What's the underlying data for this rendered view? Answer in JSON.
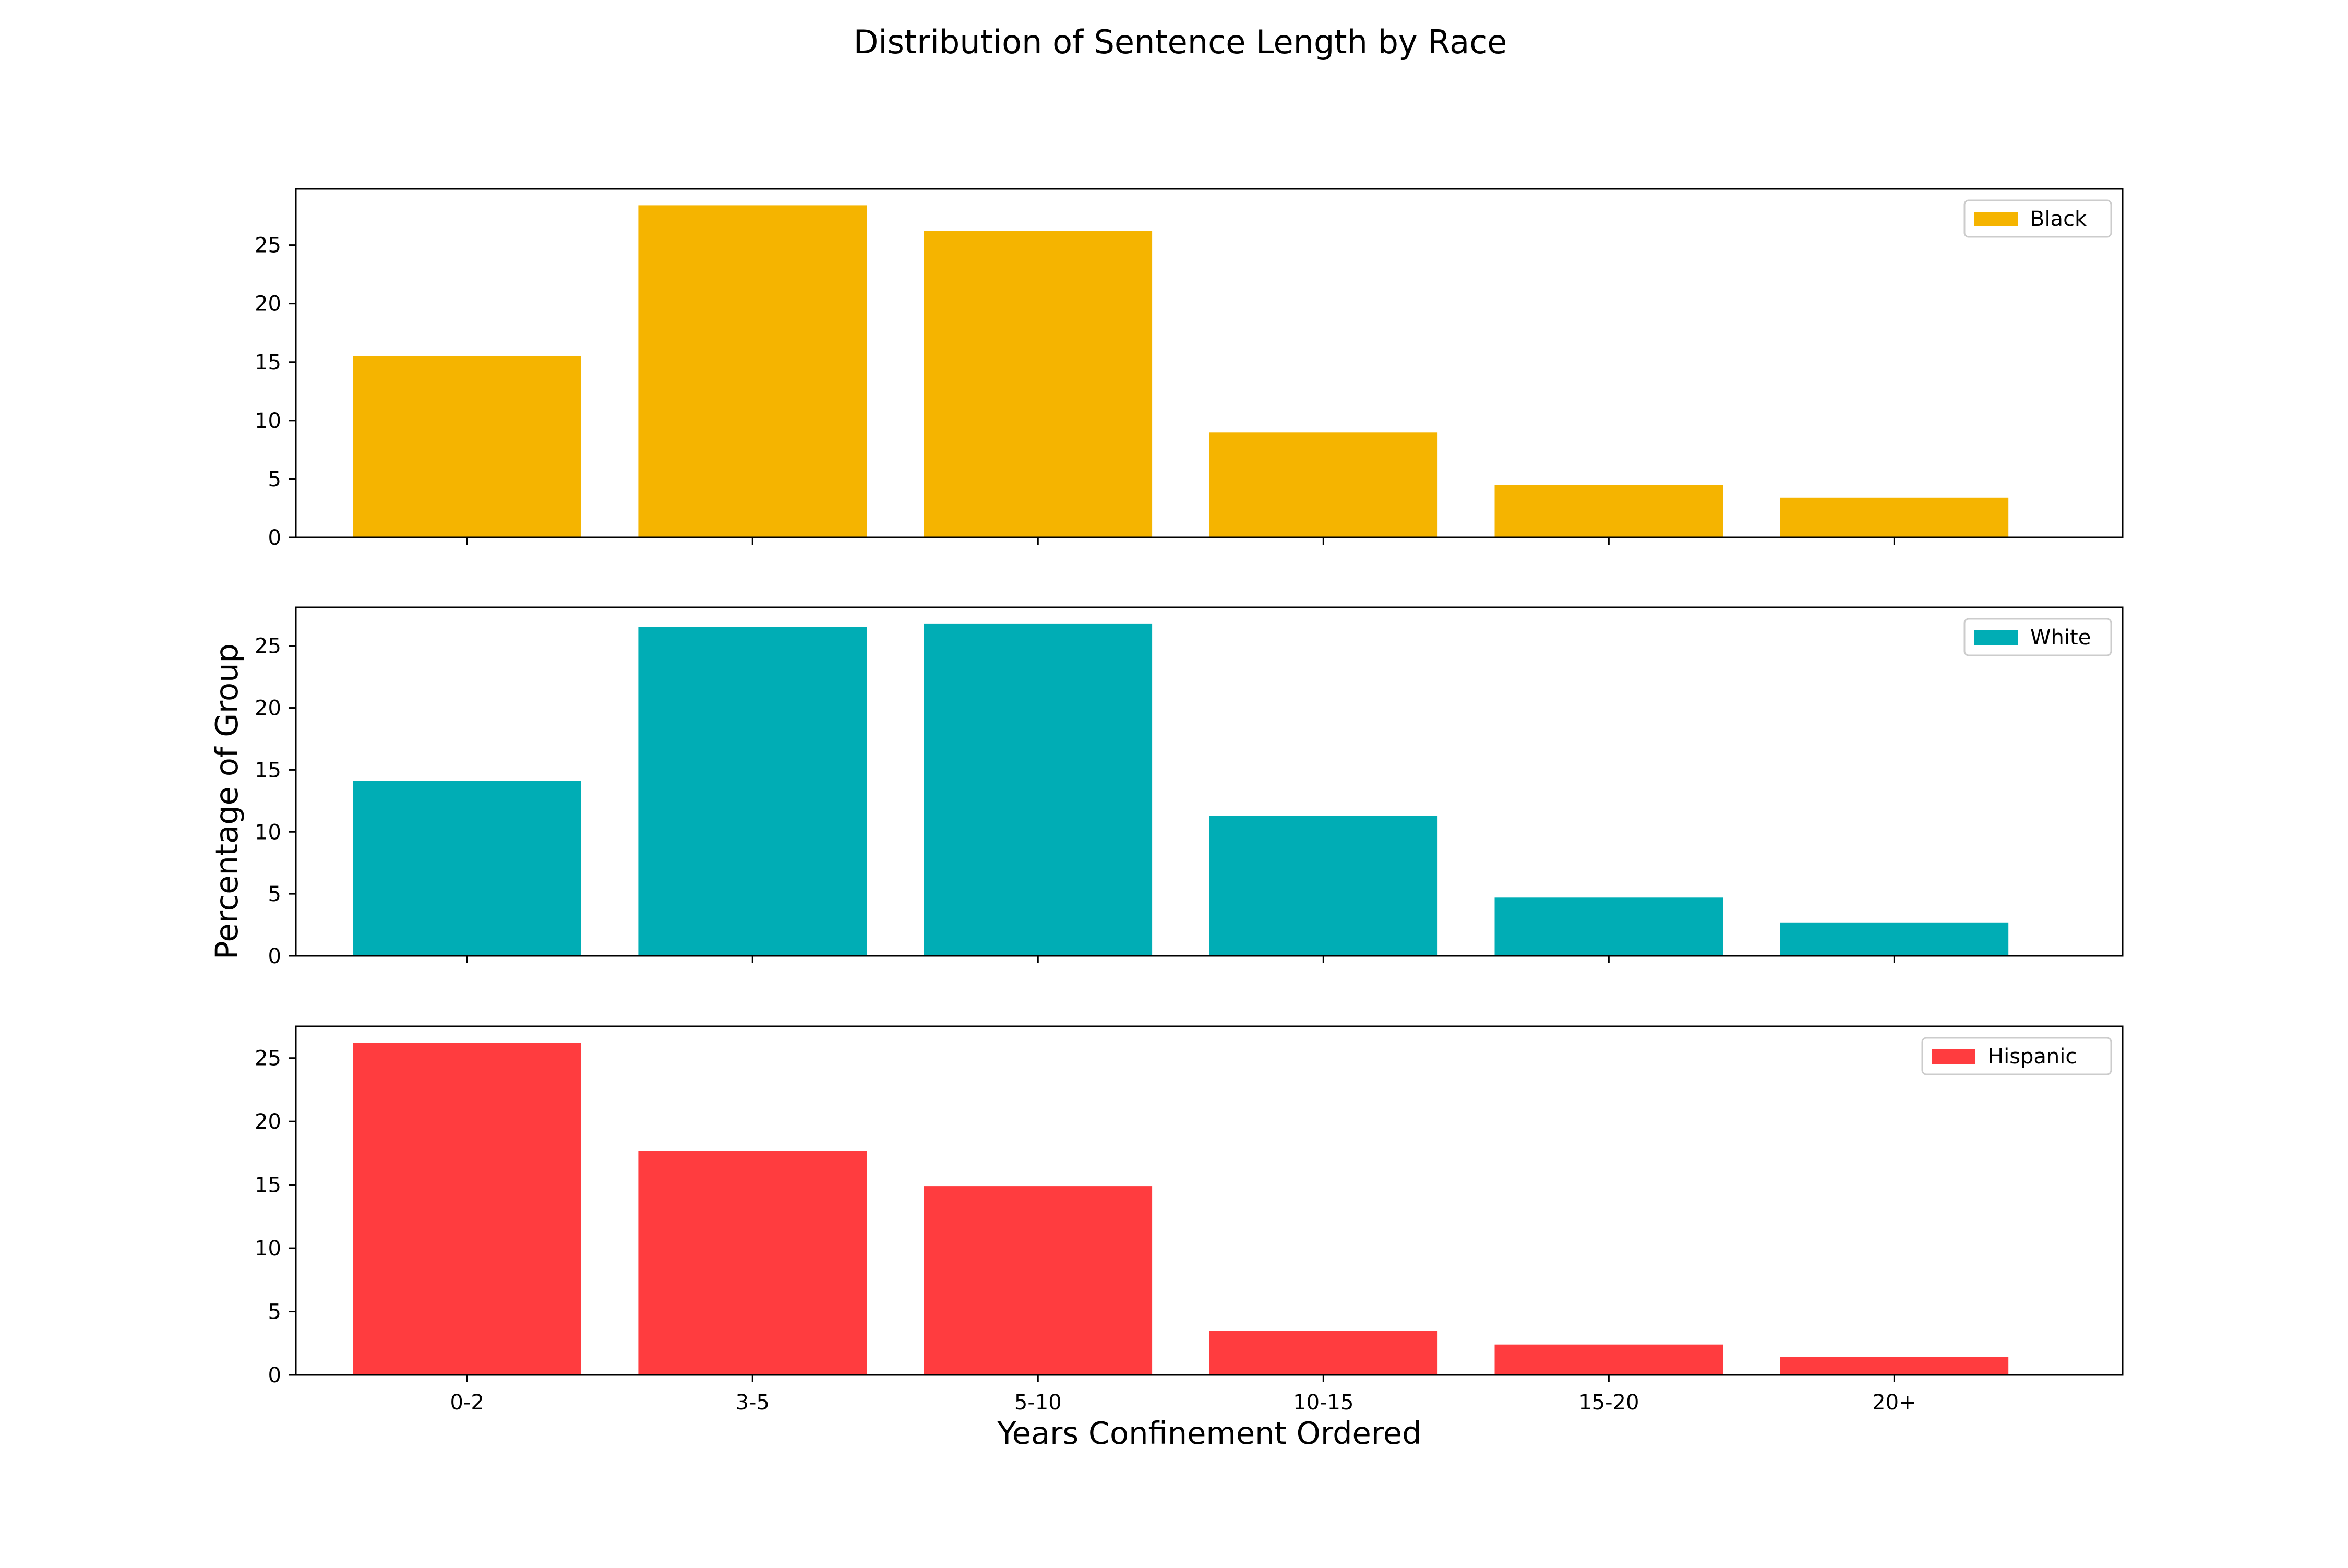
{
  "figure": {
    "title": "Distribution of Sentence Length by Race",
    "xlabel": "Years Confinement Ordered",
    "ylabel": "Percentage of Group"
  },
  "chart_data": [
    {
      "type": "bar",
      "categories": [
        "0-2",
        "3-5",
        "5-10",
        "10-15",
        "15-20",
        "20+"
      ],
      "series": [
        {
          "name": "Black",
          "values": [
            15.5,
            28.4,
            26.2,
            9.0,
            4.5,
            3.4
          ]
        }
      ],
      "ylim": [
        0,
        29.8
      ],
      "yticks": [
        0,
        5,
        10,
        15,
        20,
        25
      ],
      "color": "#F5B400",
      "legend": "top-right",
      "grid": false
    },
    {
      "type": "bar",
      "categories": [
        "0-2",
        "3-5",
        "5-10",
        "10-15",
        "15-20",
        "20+"
      ],
      "series": [
        {
          "name": "White",
          "values": [
            14.1,
            26.5,
            26.8,
            11.3,
            4.7,
            2.7
          ]
        }
      ],
      "ylim": [
        0,
        28.1
      ],
      "yticks": [
        0,
        5,
        10,
        15,
        20,
        25
      ],
      "color": "#00ADB5",
      "legend": "top-right",
      "grid": false
    },
    {
      "type": "bar",
      "categories": [
        "0-2",
        "3-5",
        "5-10",
        "10-15",
        "15-20",
        "20+"
      ],
      "series": [
        {
          "name": "Hispanic",
          "values": [
            26.2,
            17.7,
            14.9,
            3.5,
            2.4,
            1.4
          ]
        }
      ],
      "ylim": [
        0,
        27.5
      ],
      "yticks": [
        0,
        5,
        10,
        15,
        20,
        25
      ],
      "color": "#FF3C3F",
      "legend": "top-right",
      "grid": false
    }
  ]
}
